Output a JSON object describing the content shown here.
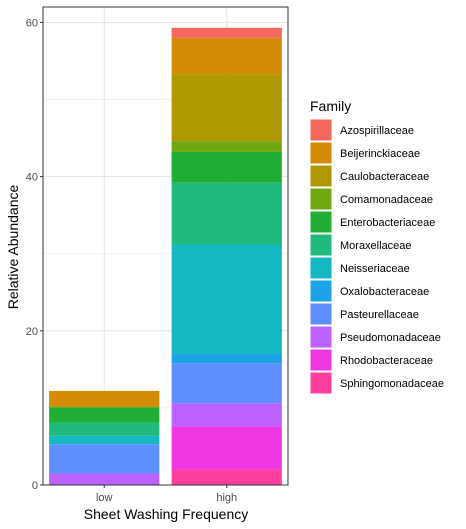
{
  "chart_data": {
    "type": "bar",
    "stacked": true,
    "categories": [
      "low",
      "high"
    ],
    "xlabel": "Sheet Washing Frequency",
    "ylabel": "Relative Abundance",
    "ylim": [
      0,
      62
    ],
    "yticks": [
      0,
      20,
      40,
      60
    ],
    "grid": true,
    "legend_title": "Family",
    "legend_position": "right",
    "series": [
      {
        "name": "Sphingomonadaceae",
        "color": "#FF3FA0",
        "values": [
          0.0,
          2.0
        ]
      },
      {
        "name": "Rhodobacteraceae",
        "color": "#F038E2",
        "values": [
          0.0,
          5.6
        ]
      },
      {
        "name": "Pseudomonadaceae",
        "color": "#BD61FF",
        "values": [
          1.5,
          3.0
        ]
      },
      {
        "name": "Pasteurellaceae",
        "color": "#5E8EFF",
        "values": [
          3.8,
          5.2
        ]
      },
      {
        "name": "Oxalobacteraceae",
        "color": "#1DA4E7",
        "values": [
          0.0,
          1.2
        ]
      },
      {
        "name": "Neisseriaceae",
        "color": "#13B8C0",
        "values": [
          1.1,
          14.2
        ]
      },
      {
        "name": "Moraxellaceae",
        "color": "#20B97E",
        "values": [
          1.7,
          8.0
        ]
      },
      {
        "name": "Enterobacteriaceae",
        "color": "#21AE36",
        "values": [
          2.0,
          4.0
        ]
      },
      {
        "name": "Comamonadaceae",
        "color": "#71A812",
        "values": [
          0.0,
          1.4
        ]
      },
      {
        "name": "Caulobacteraceae",
        "color": "#AE9A00",
        "values": [
          0.0,
          8.7
        ]
      },
      {
        "name": "Beijerinckiaceae",
        "color": "#D58B06",
        "values": [
          2.1,
          4.7
        ]
      },
      {
        "name": "Azospirillaceae",
        "color": "#F7685F",
        "values": [
          0.0,
          1.3
        ]
      }
    ]
  }
}
